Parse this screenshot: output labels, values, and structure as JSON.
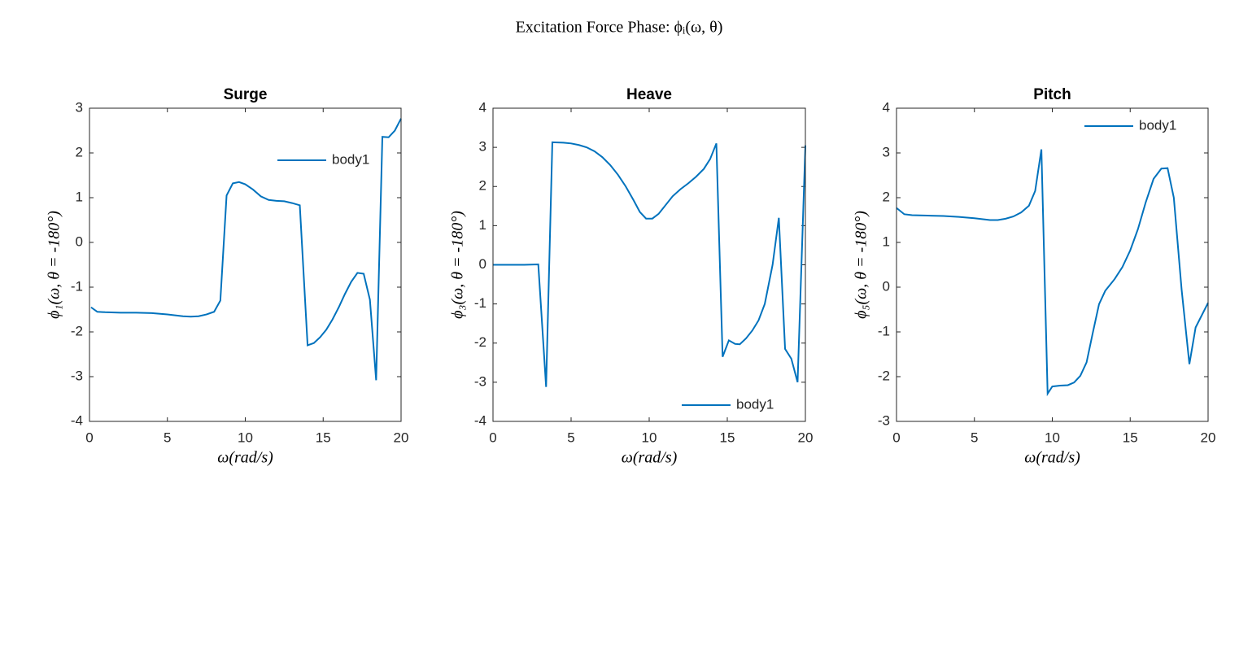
{
  "title": "Excitation Force Phase: ϕᵢ(ω, θ)",
  "chart_data": [
    {
      "type": "line",
      "title": "Surge",
      "x_label": "ω(rad/s)",
      "y_label": "ϕ₁(ω, θ = -180°)",
      "xlim": [
        0,
        20
      ],
      "ylim": [
        -4,
        3
      ],
      "xticks": [
        0,
        5,
        10,
        15,
        20
      ],
      "yticks": [
        -4,
        -3,
        -2,
        -1,
        0,
        1,
        2,
        3
      ],
      "legend": "upper right",
      "x": [
        0.1,
        0.5,
        1,
        2,
        3,
        4,
        5,
        6,
        6.5,
        7,
        7.5,
        8,
        8.4,
        8.8,
        9.2,
        9.6,
        10,
        10.5,
        11,
        11.5,
        12,
        12.5,
        13,
        13.5,
        14,
        14.4,
        14.8,
        15.2,
        15.6,
        16,
        16.4,
        16.8,
        17.2,
        17.6,
        18,
        18.4,
        18.8,
        19.2,
        19.6,
        20
      ],
      "series": [
        {
          "name": "body1",
          "color": "#0072bd",
          "values": [
            -1.45,
            -1.55,
            -1.56,
            -1.57,
            -1.57,
            -1.58,
            -1.61,
            -1.65,
            -1.66,
            -1.65,
            -1.61,
            -1.55,
            -1.3,
            1.05,
            1.32,
            1.35,
            1.3,
            1.18,
            1.03,
            0.95,
            0.93,
            0.92,
            0.88,
            0.83,
            -2.3,
            -2.25,
            -2.12,
            -1.95,
            -1.72,
            -1.45,
            -1.15,
            -0.88,
            -0.68,
            -0.7,
            -1.28,
            -3.08,
            2.36,
            2.35,
            2.5,
            2.77
          ]
        }
      ]
    },
    {
      "type": "line",
      "title": "Heave",
      "x_label": "ω(rad/s)",
      "y_label": "ϕ₃(ω, θ = -180°)",
      "xlim": [
        0,
        20
      ],
      "ylim": [
        -4,
        4
      ],
      "xticks": [
        0,
        5,
        10,
        15,
        20
      ],
      "yticks": [
        -4,
        -3,
        -2,
        -1,
        0,
        1,
        2,
        3,
        4
      ],
      "legend": "lower right",
      "x": [
        0,
        1,
        2,
        2.9,
        3.4,
        3.8,
        4.5,
        5,
        5.5,
        6,
        6.5,
        7,
        7.5,
        8,
        8.5,
        9,
        9.4,
        9.8,
        10.2,
        10.6,
        11,
        11.5,
        12,
        12.5,
        13,
        13.5,
        13.9,
        14.3,
        14.7,
        15.1,
        15.5,
        15.8,
        16.2,
        16.6,
        17,
        17.4,
        17.9,
        18.3,
        18.7,
        19.1,
        19.5,
        20
      ],
      "series": [
        {
          "name": "body1",
          "color": "#0072bd",
          "values": [
            0,
            0,
            0,
            0.01,
            -3.12,
            3.13,
            3.12,
            3.1,
            3.06,
            3.0,
            2.9,
            2.75,
            2.55,
            2.3,
            2.0,
            1.65,
            1.35,
            1.18,
            1.18,
            1.3,
            1.5,
            1.75,
            1.93,
            2.08,
            2.25,
            2.45,
            2.7,
            3.1,
            -2.35,
            -1.93,
            -2.02,
            -2.03,
            -1.88,
            -1.68,
            -1.42,
            -1.0,
            0.0,
            1.2,
            -2.15,
            -2.4,
            -3.0,
            3.05
          ]
        }
      ]
    },
    {
      "type": "line",
      "title": "Pitch",
      "x_label": "ω(rad/s)",
      "y_label": "ϕ₅(ω, θ = -180°)",
      "xlim": [
        0,
        20
      ],
      "ylim": [
        -3,
        4
      ],
      "xticks": [
        0,
        5,
        10,
        15,
        20
      ],
      "yticks": [
        -3,
        -2,
        -1,
        0,
        1,
        2,
        3,
        4
      ],
      "legend": "upper right",
      "x": [
        0,
        0.5,
        1,
        2,
        3,
        4,
        5,
        6,
        6.5,
        7,
        7.5,
        8,
        8.5,
        8.9,
        9.3,
        9.7,
        10,
        10.5,
        11,
        11.4,
        11.8,
        12.2,
        12.6,
        13,
        13.4,
        14,
        14.5,
        15,
        15.5,
        16,
        16.5,
        17,
        17.4,
        17.8,
        18.3,
        18.8,
        19.2,
        20
      ],
      "series": [
        {
          "name": "body1",
          "color": "#0072bd",
          "values": [
            1.77,
            1.63,
            1.61,
            1.6,
            1.59,
            1.57,
            1.54,
            1.5,
            1.5,
            1.53,
            1.58,
            1.67,
            1.82,
            2.15,
            3.08,
            -2.38,
            -2.22,
            -2.2,
            -2.19,
            -2.13,
            -1.98,
            -1.68,
            -1.02,
            -0.38,
            -0.08,
            0.18,
            0.45,
            0.82,
            1.3,
            1.9,
            2.42,
            2.65,
            2.66,
            2.0,
            -0.05,
            -1.72,
            -0.9,
            -0.35
          ]
        }
      ]
    }
  ]
}
